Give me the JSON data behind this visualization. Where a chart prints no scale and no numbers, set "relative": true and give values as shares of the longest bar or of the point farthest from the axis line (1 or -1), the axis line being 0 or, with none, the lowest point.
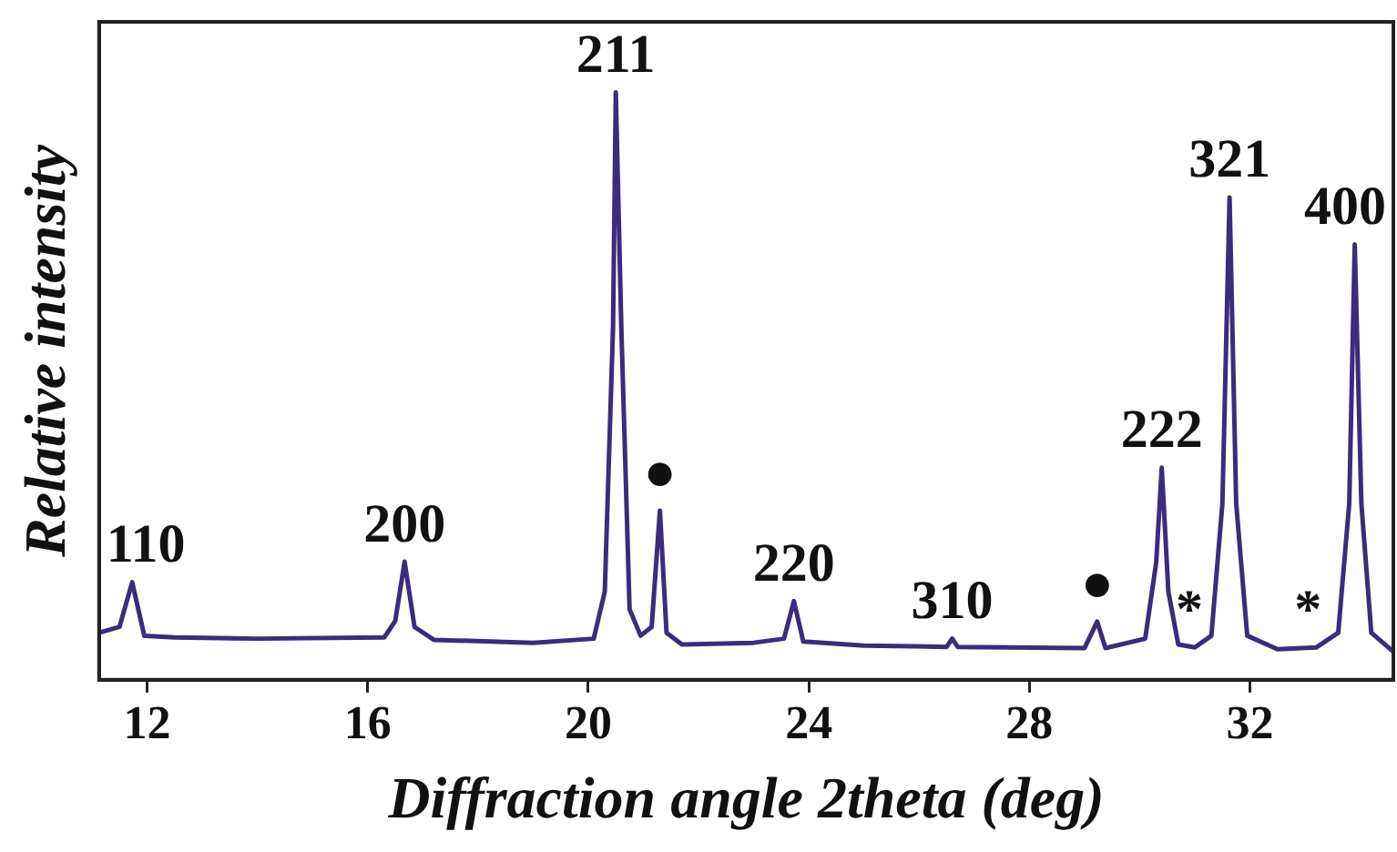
{
  "chart_data": {
    "type": "line",
    "relative": true,
    "xlabel": "Diffraction angle 2theta (deg)",
    "ylabel": "Relative intensity",
    "xlim": [
      11.13,
      34.6
    ],
    "xticks": [
      12,
      16,
      20,
      24,
      28,
      32
    ],
    "tick_labels": "x",
    "grid": false,
    "legend": false,
    "marker": "none",
    "line_style": "solid",
    "series": [
      {
        "color": "#3d2b7d",
        "x": [
          11.13,
          11.5,
          11.73,
          11.95,
          12.5,
          14,
          16.3,
          16.5,
          16.67,
          16.85,
          17.2,
          19,
          20.1,
          20.3,
          20.45,
          20.5,
          20.6,
          20.75,
          20.95,
          21.15,
          21.3,
          21.42,
          21.7,
          23,
          23.55,
          23.73,
          23.9,
          25,
          26.5,
          26.6,
          26.7,
          29,
          29.23,
          29.38,
          30.1,
          30.3,
          30.4,
          30.52,
          30.7,
          31.0,
          31.3,
          31.5,
          31.63,
          31.75,
          31.95,
          32.5,
          33.2,
          33.6,
          33.8,
          33.9,
          34.02,
          34.2,
          34.6
        ],
        "values": [
          0.08,
          0.09,
          0.166,
          0.075,
          0.072,
          0.07,
          0.072,
          0.1,
          0.201,
          0.09,
          0.068,
          0.063,
          0.07,
          0.15,
          0.6,
          1.0,
          0.6,
          0.12,
          0.075,
          0.09,
          0.288,
          0.08,
          0.06,
          0.063,
          0.07,
          0.134,
          0.065,
          0.058,
          0.056,
          0.07,
          0.056,
          0.054,
          0.099,
          0.054,
          0.07,
          0.2,
          0.361,
          0.15,
          0.06,
          0.055,
          0.075,
          0.3,
          0.821,
          0.3,
          0.075,
          0.052,
          0.055,
          0.08,
          0.3,
          0.741,
          0.3,
          0.08,
          0.048
        ]
      }
    ],
    "annotations": [
      {
        "text": "110",
        "x": 11.73,
        "y": 0.166
      },
      {
        "text": "200",
        "x": 16.67,
        "y": 0.201
      },
      {
        "text": "211",
        "x": 20.5,
        "y": 1.0
      },
      {
        "text": "●",
        "x": 21.3,
        "y": 0.288
      },
      {
        "text": "220",
        "x": 23.73,
        "y": 0.134
      },
      {
        "text": "310",
        "x": 26.6,
        "y": 0.07
      },
      {
        "text": "●",
        "x": 29.23,
        "y": 0.099
      },
      {
        "text": "222",
        "x": 30.4,
        "y": 0.361
      },
      {
        "text": "*",
        "x": 30.9,
        "y": 0.055
      },
      {
        "text": "321",
        "x": 31.63,
        "y": 0.821
      },
      {
        "text": "*",
        "x": 33.05,
        "y": 0.054
      },
      {
        "text": "400",
        "x": 33.9,
        "y": 0.741
      }
    ]
  }
}
